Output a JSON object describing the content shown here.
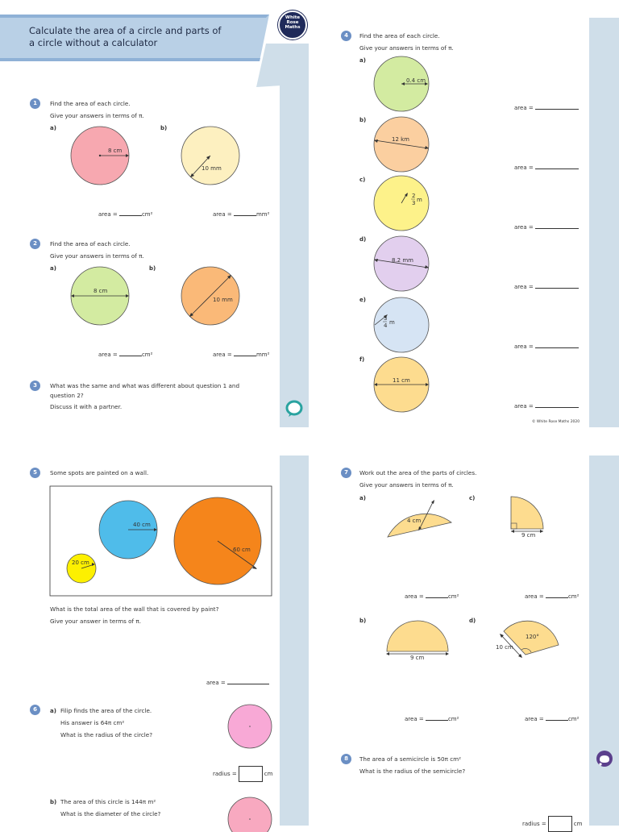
{
  "header": {
    "title_line1": "Calculate the area of a circle and parts of",
    "title_line2": "a circle without a calculator",
    "logo_line1": "White",
    "logo_line2": "Rose",
    "logo_line3": "Maths"
  },
  "footer": {
    "copyright": "© White Rose Maths 2020"
  },
  "colors": {
    "stripe": "#cfdee9",
    "badge": "#6b8fc4",
    "header_band": "#b9d0e6"
  },
  "q1": {
    "number": "1",
    "line1": "Find the area of each circle.",
    "line2": "Give your answers in terms of π.",
    "a_label": "a)",
    "b_label": "b)",
    "a_dim": "8 cm",
    "b_dim": "10 mm",
    "a_answer": "area =",
    "a_unit": "cm²",
    "b_answer": "area =",
    "b_unit": "mm²"
  },
  "q2": {
    "number": "2",
    "line1": "Find the area of each circle.",
    "line2": "Give your answers in terms of π.",
    "a_label": "a)",
    "b_label": "b)",
    "a_dim": "8 cm",
    "b_dim": "10 mm",
    "a_answer": "area =",
    "a_unit": "cm²",
    "b_answer": "area =",
    "b_unit": "mm²"
  },
  "q3": {
    "number": "3",
    "line1": "What was the same and what was different about question 1 and",
    "line2": "question 2?",
    "line3": "Discuss it with a partner."
  },
  "q4": {
    "number": "4",
    "line1": "Find the area of each circle.",
    "line2": "Give your answers in terms of π.",
    "labels": [
      "a)",
      "b)",
      "c)",
      "d)",
      "e)",
      "f)"
    ],
    "dims": [
      "0.4 cm",
      "12 km",
      "m",
      "8.2 mm",
      "m",
      "11 cm"
    ],
    "c_num": "2",
    "c_den": "3",
    "e_num": "3",
    "e_den": "4",
    "answer": "area ="
  },
  "q5": {
    "number": "5",
    "line1": "Some spots are painted on a wall.",
    "dim_small": "20 cm",
    "dim_mid": "40 cm",
    "dim_large": "60 cm",
    "line2": "What is the total area of the wall that is covered by paint?",
    "line3": "Give your answer in terms of π.",
    "answer": "area ="
  },
  "q6": {
    "number": "6",
    "a_label": "a)",
    "a_line1": "Filip finds the area of the circle.",
    "a_line2": "His answer is 64π cm²",
    "a_line3": "What is the radius of the circle?",
    "a_answer": "radius =",
    "a_unit": "cm",
    "b_label": "b)",
    "b_line1": "The area of this circle is 144π m²",
    "b_line2": "What is the diameter of the circle?"
  },
  "q7": {
    "number": "7",
    "line1": "Work out the area of the parts of circles.",
    "line2": "Give your answers in terms of π.",
    "a_label": "a)",
    "b_label": "b)",
    "c_label": "c)",
    "d_label": "d)",
    "a_dim": "4 cm",
    "b_dim": "9 cm",
    "c_dim": "9 cm",
    "d_angle": "120°",
    "d_dim": "10 cm",
    "answer": "area =",
    "unit": "cm²"
  },
  "q8": {
    "number": "8",
    "line1": "The area of a semicircle is 50π cm²",
    "line2": "What is the radius of the semicircle?",
    "answer": "radius =",
    "unit": "cm"
  }
}
